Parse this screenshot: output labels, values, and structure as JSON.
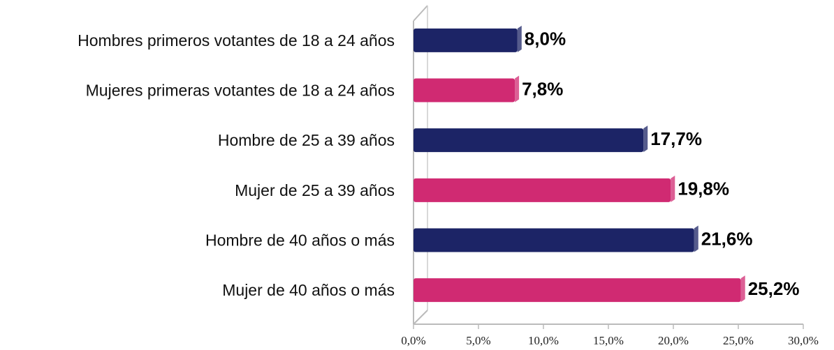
{
  "chart_data": {
    "type": "bar",
    "orientation": "horizontal",
    "categories": [
      "Hombres primeros votantes de 18 a 24 años",
      "Mujeres primeras votantes de 18 a 24 años",
      "Hombre de 25 a 39 años",
      "Mujer de 25 a 39 años",
      "Hombre de 40 años o más",
      "Mujer de 40 años  o más"
    ],
    "values": [
      8.0,
      7.8,
      17.7,
      19.8,
      21.6,
      25.2
    ],
    "value_labels": [
      "8,0%",
      "7,8%",
      "17,7%",
      "19,8%",
      "21,6%",
      "25,2%"
    ],
    "colors": [
      "#1c2466",
      "#d02a72",
      "#1c2466",
      "#d02a72",
      "#1c2466",
      "#d02a72"
    ],
    "xlim": [
      0,
      30
    ],
    "xticks": [
      {
        "value": 0,
        "label": "0,0%"
      },
      {
        "value": 5,
        "label": "5,0%"
      },
      {
        "value": 10,
        "label": "10,0%"
      },
      {
        "value": 15,
        "label": "15,0%"
      },
      {
        "value": 20,
        "label": "20,0%"
      },
      {
        "value": 25,
        "label": "25,0%"
      },
      {
        "value": 30,
        "label": "30,0%"
      }
    ]
  }
}
